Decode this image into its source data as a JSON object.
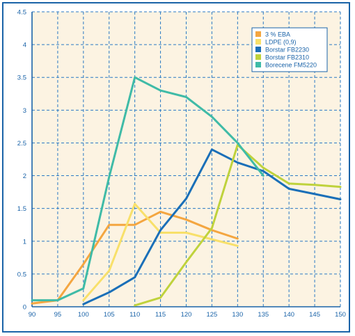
{
  "chart_data": {
    "type": "line",
    "title": "",
    "xlabel": "",
    "ylabel": "",
    "xlim": [
      90,
      150
    ],
    "ylim": [
      0,
      4.5
    ],
    "x_ticks": [
      "90",
      "95",
      "100",
      "105",
      "110",
      "115",
      "120",
      "125",
      "130",
      "135",
      "140",
      "145",
      "150"
    ],
    "y_ticks": [
      "0",
      "0.5",
      "1",
      "1.5",
      "2",
      "2.5",
      "3",
      "3.5",
      "4",
      "4.5"
    ],
    "grid": true,
    "legend_position": "top-right",
    "series": [
      {
        "name": "3 % EBA",
        "color": "#f4a640",
        "points": [
          [
            90,
            0.05
          ],
          [
            95,
            0.1
          ],
          [
            100,
            0.65
          ],
          [
            105,
            1.25
          ],
          [
            110,
            1.25
          ],
          [
            115,
            1.45
          ],
          [
            120,
            1.33
          ],
          [
            125,
            1.17
          ],
          [
            130,
            1.04
          ]
        ]
      },
      {
        "name": "LDPE (0,9)",
        "color": "#f8e06a",
        "points": [
          [
            100,
            0.1
          ],
          [
            105,
            0.55
          ],
          [
            110,
            1.57
          ],
          [
            115,
            1.13
          ],
          [
            120,
            1.13
          ],
          [
            125,
            1.03
          ],
          [
            130,
            0.93
          ]
        ]
      },
      {
        "name": "Borstar FB2230",
        "color": "#1a6fb8",
        "points": [
          [
            100,
            0.04
          ],
          [
            105,
            0.22
          ],
          [
            110,
            0.45
          ],
          [
            115,
            1.17
          ],
          [
            120,
            1.65
          ],
          [
            125,
            2.4
          ],
          [
            130,
            2.2
          ],
          [
            135,
            2.07
          ],
          [
            140,
            1.8
          ],
          [
            145,
            1.72
          ],
          [
            150,
            1.64
          ]
        ]
      },
      {
        "name": "Borstar FB2310",
        "color": "#bfd23c",
        "points": [
          [
            110,
            0.02
          ],
          [
            115,
            0.14
          ],
          [
            120,
            0.68
          ],
          [
            125,
            1.2
          ],
          [
            130,
            2.47
          ],
          [
            135,
            2.12
          ],
          [
            140,
            1.88
          ],
          [
            145,
            1.86
          ],
          [
            150,
            1.83
          ]
        ]
      },
      {
        "name": "Borecene FM5220",
        "color": "#3fbba7",
        "points": [
          [
            90,
            0.1
          ],
          [
            95,
            0.1
          ],
          [
            100,
            0.28
          ],
          [
            105,
            1.98
          ],
          [
            110,
            3.5
          ],
          [
            115,
            3.3
          ],
          [
            120,
            3.2
          ],
          [
            125,
            2.9
          ],
          [
            130,
            2.5
          ],
          [
            135,
            2.0
          ]
        ]
      }
    ]
  },
  "colors": {
    "plot_background": "#fcf3e2",
    "axis": "#1a63a8",
    "grid": "#2a7ac4"
  }
}
